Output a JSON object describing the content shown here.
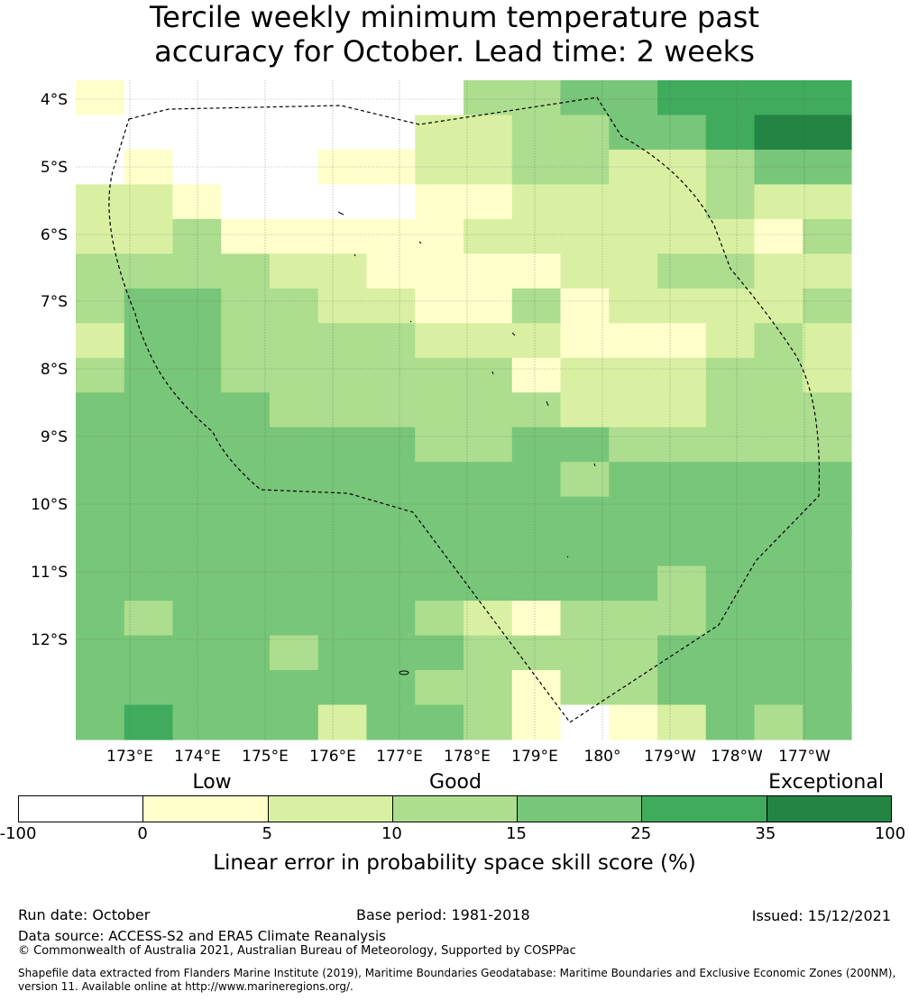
{
  "title": {
    "line1": "Tercile weekly minimum temperature past",
    "line2": "accuracy for October. Lead time: 2 weeks"
  },
  "map": {
    "lat_labels": [
      "4°S",
      "5°S",
      "6°S",
      "7°S",
      "8°S",
      "9°S",
      "10°S",
      "11°S",
      "12°S"
    ],
    "lon_labels": [
      "173°E",
      "174°E",
      "175°E",
      "176°E",
      "177°E",
      "178°E",
      "179°E",
      "180°",
      "179°W",
      "178°W",
      "177°W"
    ],
    "grid_rows": [
      "1000000033445555",
      "0000000223344566",
      "0100011223322344",
      "2210000112222322",
      "2231111122222213",
      "3333221111223322",
      "3443322113122223",
      "2443333222111232",
      "3443333331222332",
      "4444333333222333",
      "4444444334433333",
      "4444444444344444",
      "4444444444444444",
      "4444444444444444",
      "4444444444443444",
      "4344444321333444",
      "4444344433334444",
      "4444444331334444",
      "4544424431012434"
    ],
    "show_gridlines": true,
    "eez_boundary_style": "dashed"
  },
  "colorbar": {
    "category_labels": [
      "Low",
      "Good",
      "Exceptional"
    ],
    "ticks": [
      "-100",
      "0",
      "5",
      "10",
      "15",
      "25",
      "35",
      "100"
    ],
    "colors": [
      "#ffffff",
      "#ffffcc",
      "#d9f0a3",
      "#addd8e",
      "#78c679",
      "#41ab5d",
      "#238443"
    ],
    "label": "Linear error in probability space skill score (%)"
  },
  "footer": {
    "run_date": "Run date: October",
    "base_period": "Base period: 1981-2018",
    "issued": "Issued: 15/12/2021",
    "data_source": "Data source: ACCESS-S2 and ERA5 Climate Reanalysis",
    "copyright": "© Commonwealth of Australia 2021, Australian Bureau of Meteorology, Supported by COSPPac",
    "shapefile_line1": "Shapefile data extracted from Flanders Marine Institute (2019), Maritime Boundaries Geodatabase: Maritime Boundaries and Exclusive Economic Zones (200NM),",
    "shapefile_line2": "version 11. Available online at http://www.marineregions.org/."
  }
}
